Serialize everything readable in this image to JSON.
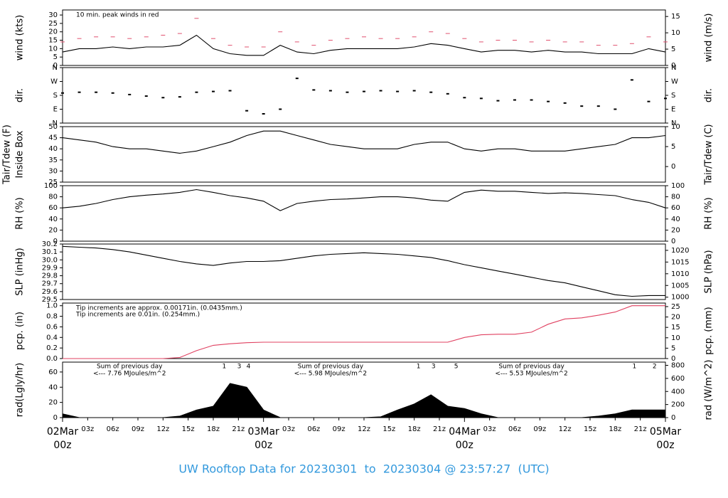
{
  "title": "UW Rooftop Data for 20230301  to  20230304 @ 23:57:27  (UTC)",
  "chart_data": [
    {
      "type": "line",
      "ylabel": "wind (kts)",
      "y2label": "wind (m/s)",
      "annotations": [
        {
          "text": "10 min. peak winds in red",
          "color": "#e0506e"
        }
      ],
      "xlim": [
        0,
        72
      ],
      "ylim": [
        0,
        33
      ],
      "yticks": [
        0,
        5,
        10,
        15,
        20,
        25,
        30
      ],
      "y2lim": [
        0,
        17
      ],
      "y2ticks": [
        0,
        5,
        10,
        15
      ],
      "x": [
        0,
        2,
        4,
        6,
        8,
        10,
        12,
        14,
        16,
        18,
        20,
        22,
        24,
        26,
        28,
        30,
        32,
        34,
        36,
        38,
        40,
        42,
        44,
        46,
        48,
        50,
        52,
        54,
        56,
        58,
        60,
        62,
        64,
        66,
        68,
        70,
        72
      ],
      "series": [
        {
          "color": "#e0506e",
          "style": "dash",
          "values": [
            14,
            16,
            17,
            17,
            16,
            17,
            18,
            19,
            28,
            16,
            12,
            11,
            11,
            20,
            14,
            12,
            15,
            16,
            17,
            16,
            16,
            17,
            20,
            19,
            16,
            14,
            15,
            15,
            14,
            15,
            14,
            14,
            12,
            12,
            13,
            17,
            14
          ]
        },
        {
          "color": "#000000",
          "style": "line",
          "values": [
            8,
            10,
            10,
            11,
            10,
            11,
            11,
            12,
            18,
            10,
            7,
            6,
            6,
            12,
            8,
            7,
            9,
            10,
            10,
            10,
            10,
            11,
            13,
            12,
            10,
            8,
            9,
            9,
            8,
            9,
            8,
            8,
            7,
            7,
            7,
            10,
            8
          ]
        }
      ]
    },
    {
      "type": "scatter",
      "ylabel": "dir.",
      "y2label": "dir.",
      "xlim": [
        0,
        72
      ],
      "ylim": [
        0,
        360
      ],
      "yticks": [
        {
          "value": 0,
          "label": "N"
        },
        {
          "value": 90,
          "label": "E"
        },
        {
          "value": 180,
          "label": "S"
        },
        {
          "value": 270,
          "label": "W"
        },
        {
          "value": 360,
          "label": "N"
        }
      ],
      "y2lim": [
        0,
        360
      ],
      "y2ticks": [
        {
          "value": 0,
          "label": "N"
        },
        {
          "value": 90,
          "label": "E"
        },
        {
          "value": 180,
          "label": "S"
        },
        {
          "value": 270,
          "label": "W"
        },
        {
          "value": 360,
          "label": "N"
        }
      ],
      "x": [
        0,
        2,
        4,
        6,
        8,
        10,
        12,
        14,
        16,
        18,
        20,
        22,
        24,
        26,
        28,
        30,
        32,
        34,
        36,
        38,
        40,
        42,
        44,
        46,
        48,
        50,
        52,
        54,
        56,
        58,
        60,
        62,
        64,
        66,
        68,
        70,
        72
      ],
      "series": [
        {
          "color": "#000000",
          "style": "point",
          "values": [
            195,
            200,
            200,
            195,
            185,
            175,
            165,
            170,
            200,
            205,
            210,
            80,
            60,
            90,
            290,
            215,
            210,
            200,
            205,
            210,
            205,
            210,
            200,
            190,
            165,
            160,
            145,
            150,
            150,
            140,
            130,
            110,
            110,
            90,
            280,
            140,
            160
          ]
        }
      ]
    },
    {
      "type": "line",
      "ylabel": "Tair/Tdew (F)",
      "ylabel2": "Inside Box",
      "y2label": "Tair/Tdew (C)",
      "xlim": [
        0,
        72
      ],
      "ylim": [
        25,
        50
      ],
      "yticks": [
        25,
        30,
        35,
        40,
        45,
        50
      ],
      "y2lim": [
        -3.9,
        10
      ],
      "y2ticks": [
        0,
        5,
        10
      ],
      "x": [
        0,
        2,
        4,
        6,
        8,
        10,
        12,
        14,
        16,
        18,
        20,
        22,
        24,
        26,
        28,
        30,
        32,
        34,
        36,
        38,
        40,
        42,
        44,
        46,
        48,
        50,
        52,
        54,
        56,
        58,
        60,
        62,
        64,
        66,
        68,
        70,
        72
      ],
      "series": [
        {
          "color": "#000000",
          "style": "line",
          "values": [
            45,
            44,
            43,
            41,
            40,
            40,
            39,
            38,
            39,
            41,
            43,
            46,
            48,
            48,
            46,
            44,
            42,
            41,
            40,
            40,
            40,
            42,
            43,
            43,
            40,
            39,
            40,
            40,
            39,
            39,
            39,
            40,
            41,
            42,
            45,
            45,
            46
          ]
        }
      ]
    },
    {
      "type": "line",
      "ylabel": "RH (%)",
      "y2label": "RH (%)",
      "xlim": [
        0,
        72
      ],
      "ylim": [
        0,
        100
      ],
      "yticks": [
        0,
        20,
        40,
        60,
        80,
        100
      ],
      "y2lim": [
        0,
        100
      ],
      "y2ticks": [
        0,
        20,
        40,
        60,
        80,
        100
      ],
      "x": [
        0,
        2,
        4,
        6,
        8,
        10,
        12,
        14,
        16,
        18,
        20,
        22,
        24,
        26,
        28,
        30,
        32,
        34,
        36,
        38,
        40,
        42,
        44,
        46,
        48,
        50,
        52,
        54,
        56,
        58,
        60,
        62,
        64,
        66,
        68,
        70,
        72
      ],
      "series": [
        {
          "color": "#000000",
          "style": "line",
          "values": [
            60,
            63,
            68,
            75,
            80,
            83,
            85,
            88,
            93,
            88,
            82,
            78,
            72,
            55,
            68,
            72,
            75,
            76,
            78,
            80,
            80,
            78,
            74,
            72,
            88,
            92,
            90,
            90,
            88,
            86,
            87,
            86,
            84,
            82,
            75,
            70,
            60
          ]
        }
      ]
    },
    {
      "type": "line",
      "ylabel": "SLP (inHg)",
      "y2label": "SLP (hPa)",
      "xlim": [
        0,
        72
      ],
      "ylim": [
        29.5,
        30.2
      ],
      "yticks": [
        29.5,
        29.6,
        29.7,
        29.8,
        29.9,
        {
          "value": 30,
          "label": "30.0"
        },
        30.1,
        30.2
      ],
      "y2lim": [
        999,
        1022.7
      ],
      "y2ticks": [
        1000,
        1005,
        1010,
        1015,
        1020
      ],
      "x": [
        0,
        2,
        4,
        6,
        8,
        10,
        12,
        14,
        16,
        18,
        20,
        22,
        24,
        26,
        28,
        30,
        32,
        34,
        36,
        38,
        40,
        42,
        44,
        46,
        48,
        50,
        52,
        54,
        56,
        58,
        60,
        62,
        64,
        66,
        68,
        70,
        72
      ],
      "series": [
        {
          "color": "#000000",
          "style": "line",
          "values": [
            30.17,
            30.16,
            30.15,
            30.13,
            30.1,
            30.06,
            30.02,
            29.98,
            29.95,
            29.93,
            29.96,
            29.98,
            29.98,
            29.99,
            30.02,
            30.05,
            30.07,
            30.08,
            30.09,
            30.08,
            30.07,
            30.05,
            30.03,
            29.99,
            29.94,
            29.9,
            29.86,
            29.82,
            29.78,
            29.74,
            29.71,
            29.66,
            29.61,
            29.56,
            29.54,
            29.55,
            29.55
          ]
        }
      ]
    },
    {
      "type": "line",
      "ylabel": "pcp. (in)",
      "y2label": "pcp. (mm)",
      "annotations": [
        {
          "text": "Tip increments are approx. 0.00171in. (0.0435mm.)",
          "color": "#e0506e"
        },
        {
          "text": "Tip increments are 0.01in. (0.254mm.)",
          "color": "#3399dd"
        }
      ],
      "xlim": [
        0,
        72
      ],
      "ylim": [
        0,
        1.05
      ],
      "yticks": [
        {
          "value": 0,
          "label": "0.0"
        },
        0.2,
        0.4,
        0.6,
        0.8,
        {
          "value": 1,
          "label": "1.0"
        }
      ],
      "y2lim": [
        0,
        26.7
      ],
      "y2ticks": [
        0,
        5,
        10,
        15,
        20,
        25
      ],
      "x": [
        0,
        2,
        4,
        6,
        8,
        10,
        12,
        14,
        16,
        18,
        20,
        22,
        24,
        26,
        28,
        30,
        32,
        34,
        36,
        38,
        40,
        42,
        44,
        46,
        48,
        50,
        52,
        54,
        56,
        58,
        60,
        62,
        64,
        66,
        68,
        70,
        72
      ],
      "series": [
        {
          "color": "#e04060",
          "style": "line",
          "values": [
            0,
            0,
            0,
            0,
            0,
            0,
            0,
            0.02,
            0.15,
            0.25,
            0.28,
            0.3,
            0.31,
            0.31,
            0.31,
            0.31,
            0.31,
            0.31,
            0.31,
            0.31,
            0.31,
            0.31,
            0.31,
            0.31,
            0.4,
            0.45,
            0.46,
            0.46,
            0.5,
            0.65,
            0.75,
            0.77,
            0.82,
            0.88,
            1.0,
            1.0,
            1.0
          ]
        }
      ]
    },
    {
      "type": "area",
      "ylabel": "rad(Lgly/hr)",
      "y2label": "rad (W/m^2)",
      "notes": [
        {
          "x": 8,
          "lines": [
            "Sum of previous day",
            "<--- 7.76 MJoules/m^2"
          ]
        },
        {
          "x": 32,
          "lines": [
            "Sum of previous day",
            "<--- 5.98 MJoules/m^2"
          ]
        },
        {
          "x": 56,
          "lines": [
            "Sum of previous day",
            "<--- 5.53 MJoules/m^2"
          ]
        }
      ],
      "markers": [
        {
          "x": 19.3,
          "text": "1"
        },
        {
          "x": 21.1,
          "text": "3"
        },
        {
          "x": 22.2,
          "text": "4"
        },
        {
          "x": 42.5,
          "text": "1"
        },
        {
          "x": 44.3,
          "text": "3"
        },
        {
          "x": 47,
          "text": "5"
        },
        {
          "x": 68.3,
          "text": "1"
        },
        {
          "x": 70.7,
          "text": "2"
        }
      ],
      "note_color": "#9933cc",
      "xlim": [
        0,
        72
      ],
      "ylim": [
        0,
        73
      ],
      "yticks": [
        0,
        20,
        40,
        60
      ],
      "y2lim": [
        0,
        849
      ],
      "y2ticks": [
        0,
        200,
        400,
        600,
        800
      ],
      "xticks": [
        {
          "value": 0,
          "label": [
            "02Mar",
            "00z"
          ]
        },
        {
          "value": 3,
          "label": "03z"
        },
        {
          "value": 6,
          "label": "06z"
        },
        {
          "value": 9,
          "label": "09z"
        },
        {
          "value": 12,
          "label": "12z"
        },
        {
          "value": 15,
          "label": "15z"
        },
        {
          "value": 18,
          "label": "18z"
        },
        {
          "value": 21,
          "label": "21z"
        },
        {
          "value": 24,
          "label": [
            "03Mar",
            "00z"
          ]
        },
        {
          "value": 27,
          "label": "03z"
        },
        {
          "value": 30,
          "label": "06z"
        },
        {
          "value": 33,
          "label": "09z"
        },
        {
          "value": 36,
          "label": "12z"
        },
        {
          "value": 39,
          "label": "15z"
        },
        {
          "value": 42,
          "label": "18z"
        },
        {
          "value": 45,
          "label": "21z"
        },
        {
          "value": 48,
          "label": [
            "04Mar",
            "00z"
          ]
        },
        {
          "value": 51,
          "label": "03z"
        },
        {
          "value": 54,
          "label": "06z"
        },
        {
          "value": 57,
          "label": "09z"
        },
        {
          "value": 60,
          "label": "12z"
        },
        {
          "value": 63,
          "label": "15z"
        },
        {
          "value": 66,
          "label": "18z"
        },
        {
          "value": 69,
          "label": "21z"
        },
        {
          "value": 72,
          "label": [
            "05Mar",
            "00z"
          ]
        }
      ],
      "x": [
        0,
        2,
        4,
        6,
        8,
        10,
        12,
        14,
        16,
        18,
        20,
        22,
        24,
        26,
        28,
        30,
        32,
        34,
        36,
        38,
        40,
        42,
        44,
        46,
        48,
        50,
        52,
        54,
        56,
        58,
        60,
        62,
        64,
        66,
        68,
        70,
        72
      ],
      "series": [
        {
          "color": "#000000",
          "style": "fill",
          "values": [
            5,
            0,
            0,
            0,
            0,
            0,
            0,
            2,
            10,
            15,
            45,
            40,
            10,
            0,
            0,
            0,
            0,
            0,
            0,
            1,
            10,
            18,
            30,
            15,
            12,
            5,
            0,
            0,
            0,
            0,
            0,
            0,
            2,
            5,
            10,
            10,
            10
          ]
        }
      ]
    }
  ]
}
